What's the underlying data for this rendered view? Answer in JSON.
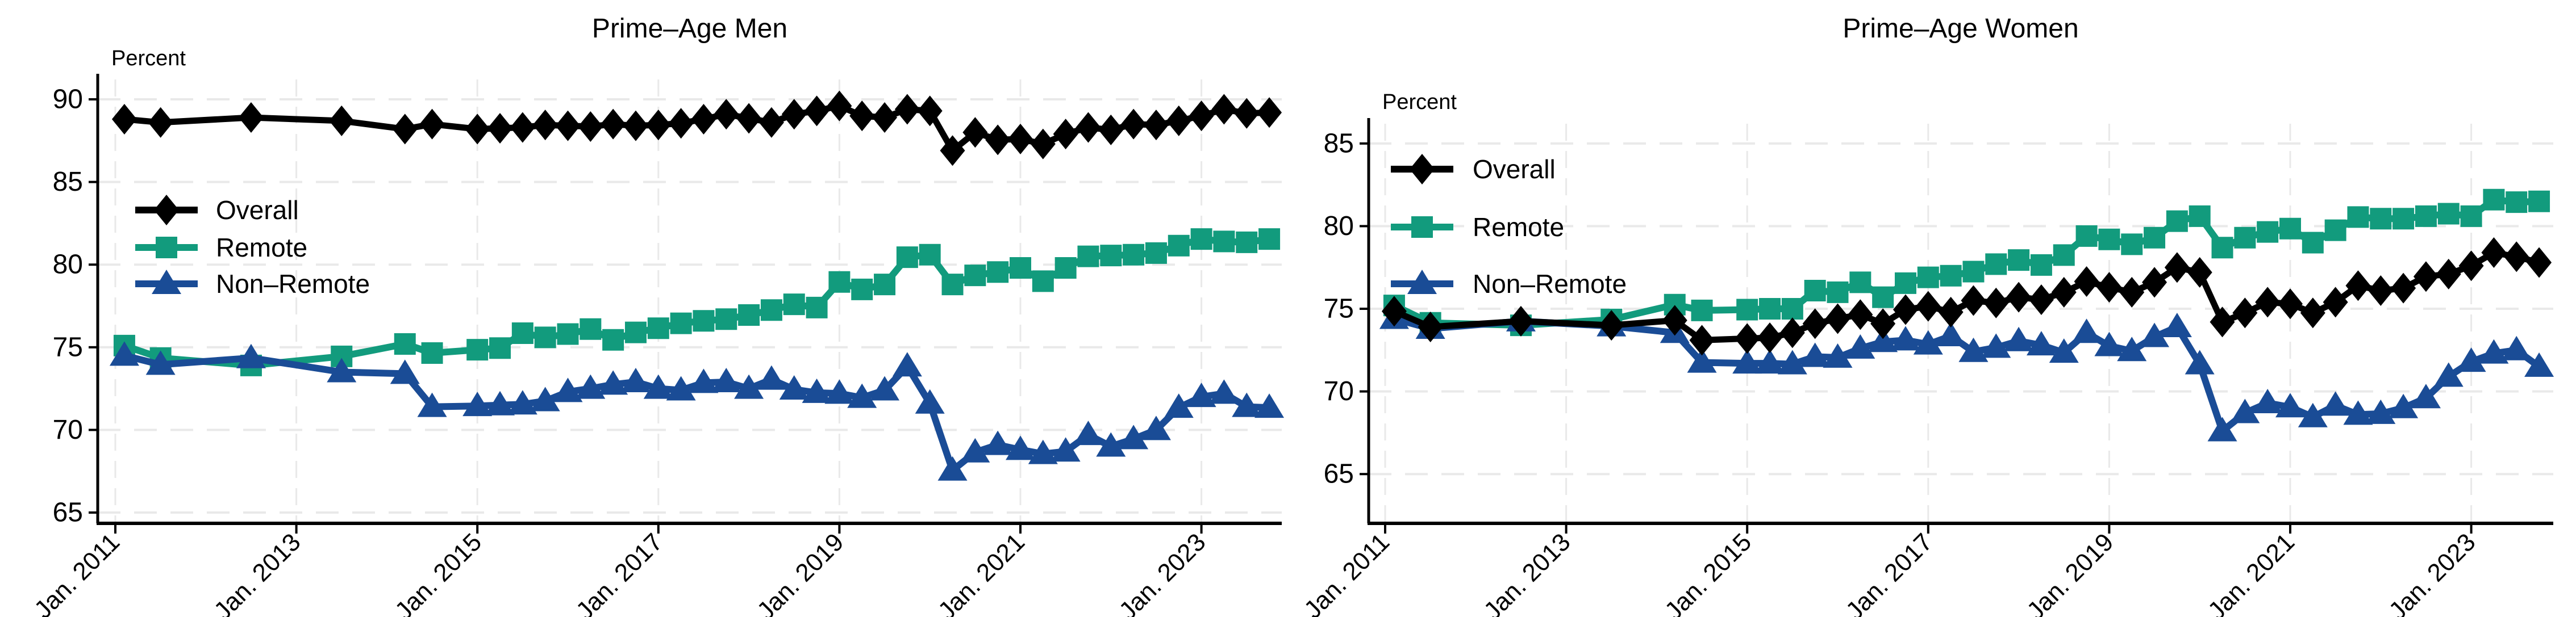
{
  "page": {
    "background": "#ffffff",
    "figure_type": "two-panel line chart"
  },
  "colors": {
    "overall": "#000000",
    "remote": "#129b7d",
    "non_remote": "#1a4c96",
    "gridline": "#e9e9e9",
    "axis": "#000000",
    "text": "#000000"
  },
  "chart_data": [
    {
      "type": "line",
      "title": "Prime–Age Men",
      "ylabel": "Percent",
      "xlabel": "",
      "grid": true,
      "legend_position": "upper-left-inside",
      "ylim": [
        64.3,
        91
      ],
      "y_ticks": [
        65,
        70,
        75,
        80,
        85,
        90
      ],
      "x_tick_labels": [
        "Jan. 2011",
        "Jan. 2013",
        "Jan. 2015",
        "Jan. 2017",
        "Jan. 2019",
        "Jan. 2021",
        "Jan. 2023"
      ],
      "x_tick_years": [
        2011,
        2013,
        2015,
        2017,
        2019,
        2021,
        2023
      ],
      "x": [
        2011.1,
        2011.5,
        2012.5,
        2013.5,
        2014.2,
        2014.5,
        2015.0,
        2015.25,
        2015.5,
        2015.75,
        2016.0,
        2016.25,
        2016.5,
        2016.75,
        2017.0,
        2017.25,
        2017.5,
        2017.75,
        2018.0,
        2018.25,
        2018.5,
        2018.75,
        2019.0,
        2019.25,
        2019.5,
        2019.75,
        2020.0,
        2020.25,
        2020.5,
        2020.75,
        2021.0,
        2021.25,
        2021.5,
        2021.75,
        2022.0,
        2022.25,
        2022.5,
        2022.75,
        2023.0,
        2023.25,
        2023.5,
        2023.75
      ],
      "series": [
        {
          "name": "Overall",
          "marker": "diamond",
          "color_key": "overall",
          "values": [
            88.8,
            88.6,
            88.9,
            88.7,
            88.2,
            88.5,
            88.2,
            88.25,
            88.3,
            88.45,
            88.4,
            88.35,
            88.5,
            88.4,
            88.45,
            88.55,
            88.8,
            89.1,
            88.85,
            88.6,
            89.1,
            89.3,
            89.6,
            89.0,
            88.9,
            89.4,
            89.3,
            86.9,
            88.0,
            87.55,
            87.6,
            87.3,
            87.9,
            88.3,
            88.15,
            88.5,
            88.45,
            88.7,
            89.0,
            89.4,
            89.15,
            89.2
          ]
        },
        {
          "name": "Remote",
          "marker": "square",
          "color_key": "remote",
          "values": [
            75.1,
            74.35,
            73.9,
            74.45,
            75.2,
            74.65,
            74.85,
            74.95,
            75.85,
            75.6,
            75.8,
            76.1,
            75.45,
            75.9,
            76.15,
            76.45,
            76.6,
            76.7,
            76.95,
            77.25,
            77.6,
            77.4,
            78.95,
            78.5,
            78.8,
            80.45,
            80.6,
            78.8,
            79.35,
            79.55,
            79.8,
            79.0,
            79.8,
            80.5,
            80.55,
            80.6,
            80.7,
            81.15,
            81.55,
            81.4,
            81.35,
            81.55
          ]
        },
        {
          "name": "Non–Remote",
          "marker": "triangle",
          "color_key": "non_remote",
          "values": [
            74.5,
            73.95,
            74.35,
            73.5,
            73.4,
            71.4,
            71.45,
            71.5,
            71.55,
            71.75,
            72.3,
            72.5,
            72.75,
            72.9,
            72.5,
            72.4,
            72.85,
            72.9,
            72.5,
            73.05,
            72.45,
            72.25,
            72.2,
            71.95,
            72.4,
            73.85,
            71.6,
            67.55,
            68.65,
            69.1,
            68.8,
            68.55,
            68.7,
            69.7,
            69.0,
            69.45,
            70.0,
            71.35,
            72.0,
            72.2,
            71.4,
            71.35
          ]
        }
      ]
    },
    {
      "type": "line",
      "title": "Prime–Age Women",
      "ylabel": "Percent",
      "xlabel": "",
      "grid": true,
      "legend_position": "upper-left-inside",
      "ylim": [
        64.3,
        86
      ],
      "y_ticks": [
        65,
        70,
        75,
        80,
        85
      ],
      "x_tick_labels": [
        "Jan. 2011",
        "Jan. 2013",
        "Jan. 2015",
        "Jan. 2017",
        "Jan. 2019",
        "Jan. 2021",
        "Jan. 2023"
      ],
      "x_tick_years": [
        2011,
        2013,
        2015,
        2017,
        2019,
        2021,
        2023
      ],
      "x": [
        2011.1,
        2011.5,
        2012.5,
        2013.5,
        2014.2,
        2014.5,
        2015.0,
        2015.25,
        2015.5,
        2015.75,
        2016.0,
        2016.25,
        2016.5,
        2016.75,
        2017.0,
        2017.25,
        2017.5,
        2017.75,
        2018.0,
        2018.25,
        2018.5,
        2018.75,
        2019.0,
        2019.25,
        2019.5,
        2019.75,
        2020.0,
        2020.25,
        2020.5,
        2020.75,
        2021.0,
        2021.25,
        2021.5,
        2021.75,
        2022.0,
        2022.25,
        2022.5,
        2022.75,
        2023.0,
        2023.25,
        2023.5,
        2023.75
      ],
      "series": [
        {
          "name": "Overall",
          "marker": "diamond",
          "color_key": "overall",
          "values": [
            74.85,
            73.9,
            74.25,
            74.0,
            74.3,
            73.1,
            73.2,
            73.25,
            73.55,
            74.1,
            74.4,
            74.65,
            74.1,
            74.95,
            75.15,
            74.8,
            75.5,
            75.35,
            75.7,
            75.55,
            76.0,
            76.65,
            76.3,
            76.0,
            76.6,
            77.5,
            77.2,
            74.2,
            74.75,
            75.4,
            75.3,
            74.75,
            75.4,
            76.4,
            76.1,
            76.25,
            76.95,
            77.1,
            77.6,
            78.4,
            78.15,
            77.8
          ]
        },
        {
          "name": "Remote",
          "marker": "square",
          "color_key": "remote",
          "values": [
            75.2,
            74.15,
            74.0,
            74.35,
            75.25,
            74.9,
            74.95,
            75.0,
            75.0,
            76.1,
            76.0,
            76.6,
            75.7,
            76.55,
            76.9,
            77.0,
            77.25,
            77.7,
            77.95,
            77.65,
            78.25,
            79.4,
            79.2,
            78.9,
            79.3,
            80.3,
            80.6,
            78.7,
            79.3,
            79.65,
            79.85,
            79.0,
            79.75,
            80.55,
            80.45,
            80.45,
            80.6,
            80.75,
            80.6,
            81.6,
            81.45,
            81.5
          ]
        },
        {
          "name": "Non–Remote",
          "marker": "triangle",
          "color_key": "non_remote",
          "values": [
            74.4,
            73.8,
            74.25,
            73.95,
            73.55,
            71.75,
            71.7,
            71.7,
            71.65,
            72.1,
            72.05,
            72.6,
            73.0,
            73.1,
            72.85,
            73.35,
            72.4,
            72.65,
            73.05,
            72.8,
            72.35,
            73.55,
            72.75,
            72.45,
            73.3,
            73.9,
            71.65,
            67.6,
            68.7,
            69.3,
            69.05,
            68.45,
            69.15,
            68.6,
            68.65,
            69.0,
            69.6,
            70.9,
            71.8,
            72.3,
            72.5,
            71.5
          ]
        }
      ]
    }
  ]
}
